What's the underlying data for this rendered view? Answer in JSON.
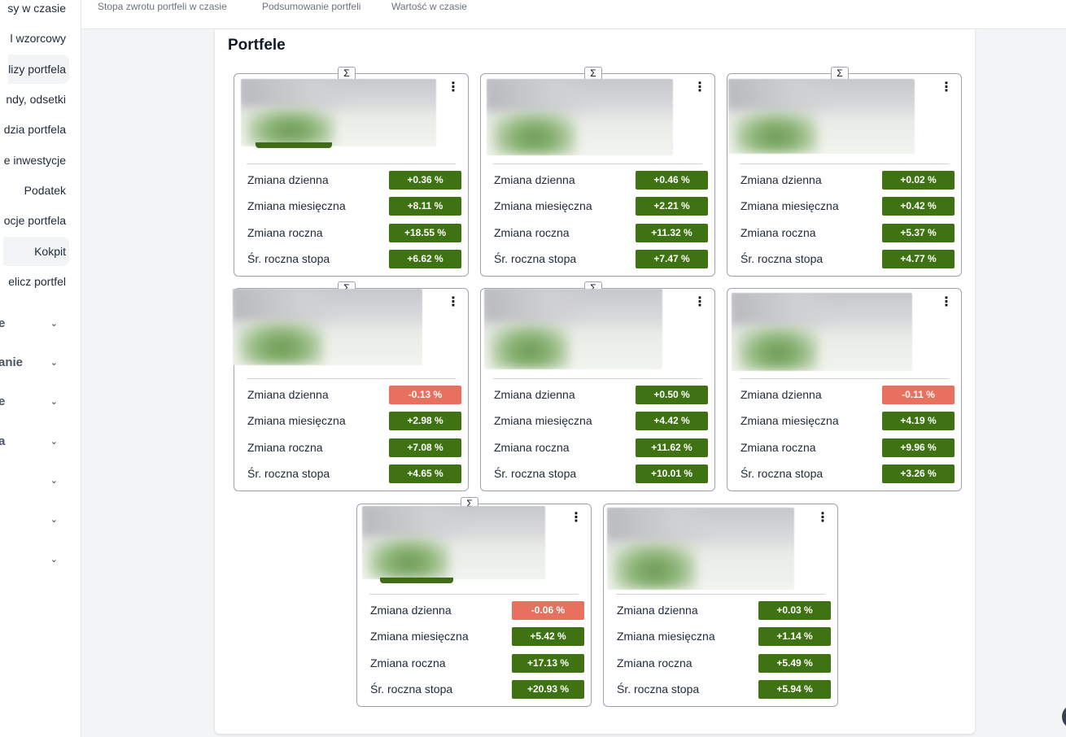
{
  "sidebar": {
    "items": [
      {
        "label": "sy w czasie",
        "active": false
      },
      {
        "label": "l wzorcowy",
        "active": false
      },
      {
        "label": "lizy portfela",
        "active": true
      },
      {
        "label": "ndy, odsetki",
        "active": false
      },
      {
        "label": "dzia portfela",
        "active": false
      },
      {
        "label": "e inwestycje",
        "active": false
      },
      {
        "label": "Podatek",
        "active": false
      },
      {
        "label": "ocje portfela",
        "active": false
      },
      {
        "label": "Kokpit",
        "active": true
      },
      {
        "label": "elicz portfel",
        "active": false
      }
    ],
    "groups": [
      {
        "label": "e",
        "icon": "chevron-down-icon"
      },
      {
        "label": "anie",
        "icon": "chevron-down-icon"
      },
      {
        "label": "e",
        "icon": "chevron-down-icon"
      },
      {
        "label": "a",
        "icon": "chevron-down-icon"
      },
      {
        "label": "",
        "icon": "chevron-down-icon"
      },
      {
        "label": "",
        "icon": "chevron-down-icon"
      },
      {
        "label": "",
        "icon": "chevron-down-icon"
      }
    ]
  },
  "tabs": [
    {
      "label": "Stopa zwrotu portfeli w czasie"
    },
    {
      "label": "Podsumowanie portfeli"
    },
    {
      "label": "Wartość w czasie"
    }
  ],
  "main": {
    "title": "Portfele",
    "row_labels": [
      "Zmiana dzienna",
      "Zmiana miesięczna",
      "Zmiana roczna",
      "Śr. roczna stopa"
    ],
    "sigma_symbol": "Σ",
    "menu_symbol": "⋮",
    "cards": [
      {
        "sigma": true,
        "values": [
          "+0.36 %",
          "+8.11 %",
          "+18.55 %",
          "+6.62 %"
        ],
        "signs": [
          "pos",
          "pos",
          "pos",
          "pos"
        ]
      },
      {
        "sigma": true,
        "values": [
          "+0.46 %",
          "+2.21 %",
          "+11.32 %",
          "+7.47 %"
        ],
        "signs": [
          "pos",
          "pos",
          "pos",
          "pos"
        ]
      },
      {
        "sigma": true,
        "values": [
          "+0.02 %",
          "+0.42 %",
          "+5.37 %",
          "+4.77 %"
        ],
        "signs": [
          "pos",
          "pos",
          "pos",
          "pos"
        ]
      },
      {
        "sigma": true,
        "values": [
          "-0.13 %",
          "+2.98 %",
          "+7.08 %",
          "+4.65 %"
        ],
        "signs": [
          "neg",
          "pos",
          "pos",
          "pos"
        ]
      },
      {
        "sigma": true,
        "values": [
          "+0.50 %",
          "+4.42 %",
          "+11.62 %",
          "+10.01 %"
        ],
        "signs": [
          "pos",
          "pos",
          "pos",
          "pos"
        ]
      },
      {
        "sigma": false,
        "values": [
          "-0.11 %",
          "+4.19 %",
          "+9.96 %",
          "+3.26 %"
        ],
        "signs": [
          "neg",
          "pos",
          "pos",
          "pos"
        ]
      },
      {
        "sigma": true,
        "values": [
          "-0.06 %",
          "+5.42 %",
          "+17.13 %",
          "+20.93 %"
        ],
        "signs": [
          "neg",
          "pos",
          "pos",
          "pos"
        ]
      },
      {
        "sigma": false,
        "values": [
          "+0.03 %",
          "+1.14 %",
          "+5.49 %",
          "+5.94 %"
        ],
        "signs": [
          "pos",
          "pos",
          "pos",
          "pos"
        ]
      }
    ]
  },
  "colors": {
    "positive": "#3f7212",
    "negative": "#e8705f"
  }
}
